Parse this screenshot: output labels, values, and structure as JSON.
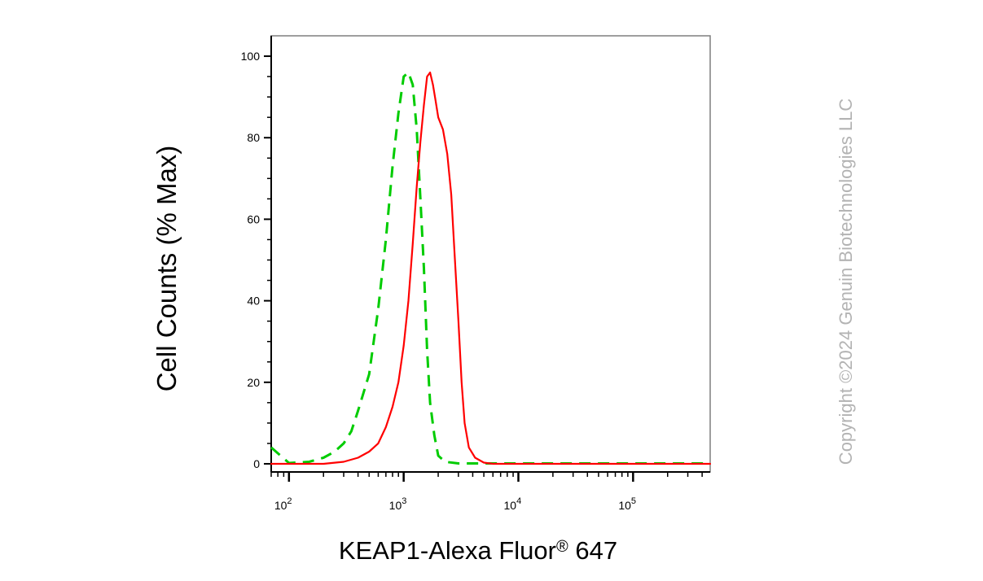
{
  "chart_data": {
    "type": "line",
    "title": "",
    "xlabel": "KEAP1-Alexa Fluor® 647",
    "xlabel_parts": {
      "prefix": "KEAP1-Alexa Fluor",
      "sup": "®",
      "suffix": " 647"
    },
    "ylabel": "Cell Counts (% Max)",
    "x_scale": "log",
    "xlim": [
      70,
      470000
    ],
    "ylim": [
      -2,
      105
    ],
    "x_ticks": [
      {
        "value": 100,
        "base": "10",
        "exp": "2"
      },
      {
        "value": 1000,
        "base": "10",
        "exp": "3"
      },
      {
        "value": 10000,
        "base": "10",
        "exp": "4"
      },
      {
        "value": 100000,
        "base": "10",
        "exp": "5"
      }
    ],
    "y_ticks": [
      0,
      20,
      40,
      60,
      80,
      100
    ],
    "grid": false,
    "legend": "none",
    "series": [
      {
        "color": "#00cc00",
        "style": "dashed",
        "points": [
          [
            70,
            4
          ],
          [
            100,
            0.2
          ],
          [
            150,
            0.5
          ],
          [
            200,
            1.5
          ],
          [
            250,
            3
          ],
          [
            300,
            5
          ],
          [
            350,
            8
          ],
          [
            400,
            13
          ],
          [
            500,
            22
          ],
          [
            600,
            38
          ],
          [
            700,
            55
          ],
          [
            800,
            73
          ],
          [
            900,
            86
          ],
          [
            1000,
            95
          ],
          [
            1100,
            96
          ],
          [
            1200,
            93
          ],
          [
            1300,
            82
          ],
          [
            1400,
            65
          ],
          [
            1500,
            48
          ],
          [
            1600,
            28
          ],
          [
            1700,
            15
          ],
          [
            1850,
            7
          ],
          [
            2000,
            2
          ],
          [
            2300,
            0.5
          ],
          [
            3000,
            0.1
          ],
          [
            10000,
            0.1
          ],
          [
            100000,
            0.1
          ],
          [
            470000,
            0.1
          ]
        ]
      },
      {
        "color": "#ff0000",
        "style": "solid",
        "points": [
          [
            70,
            0
          ],
          [
            200,
            0
          ],
          [
            300,
            0.5
          ],
          [
            400,
            1.5
          ],
          [
            500,
            3
          ],
          [
            600,
            5
          ],
          [
            700,
            9
          ],
          [
            800,
            14
          ],
          [
            900,
            20
          ],
          [
            1000,
            29
          ],
          [
            1100,
            40
          ],
          [
            1200,
            54
          ],
          [
            1300,
            68
          ],
          [
            1400,
            79
          ],
          [
            1500,
            88
          ],
          [
            1600,
            95
          ],
          [
            1700,
            96
          ],
          [
            1800,
            93
          ],
          [
            1900,
            89
          ],
          [
            2000,
            85
          ],
          [
            2200,
            82
          ],
          [
            2400,
            76
          ],
          [
            2600,
            66
          ],
          [
            2800,
            50
          ],
          [
            3000,
            35
          ],
          [
            3200,
            20
          ],
          [
            3400,
            10
          ],
          [
            3700,
            4
          ],
          [
            4200,
            1.5
          ],
          [
            5000,
            0.3
          ],
          [
            6000,
            0
          ],
          [
            470000,
            0
          ]
        ]
      }
    ]
  },
  "copyright": "Copyright ©2024 Genuin Biotechnologies LLC"
}
